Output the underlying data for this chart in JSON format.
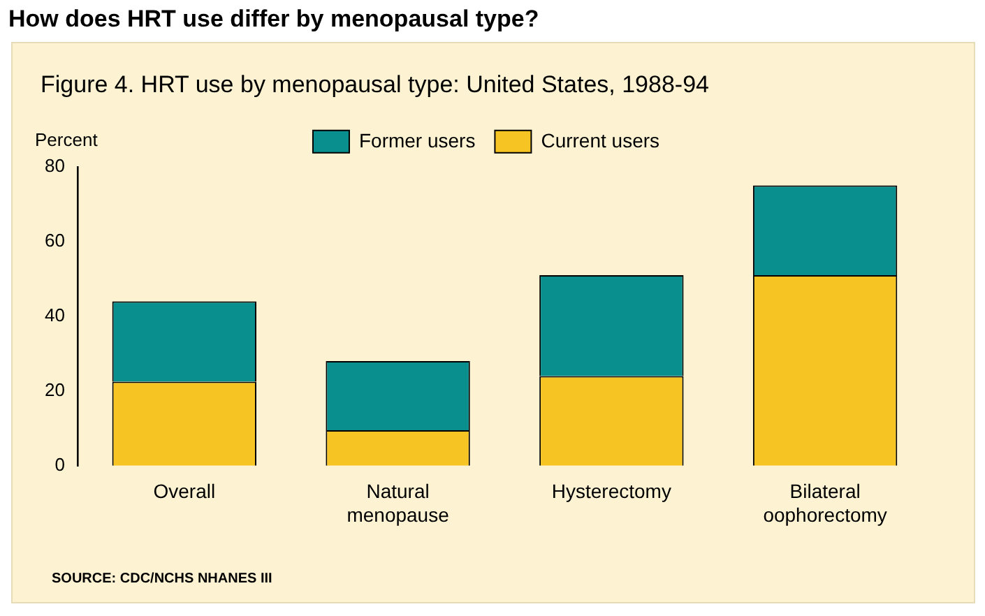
{
  "chart_data": {
    "type": "bar",
    "title": "How does HRT use differ by menopausal type?",
    "subtitle": "Figure 4. HRT use by menopausal type: United States, 1988-94",
    "ylabel": "Percent",
    "categories": [
      "Overall",
      "Natural menopause",
      "Hysterectomy",
      "Bilateral oophorectomy"
    ],
    "series": [
      {
        "name": "Current users",
        "color": "#f7c523",
        "values": [
          22.5,
          9.5,
          24,
          51
        ]
      },
      {
        "name": "Former users",
        "color": "#0a8f8f",
        "values": [
          21.5,
          18.5,
          27,
          24
        ]
      }
    ],
    "stacked": true,
    "ylim": [
      0,
      80
    ],
    "yticks": [
      0,
      20,
      40,
      60,
      80
    ],
    "grid": false,
    "legend": "top",
    "annotations": [
      "SOURCE: CDC/NCHS NHANES III"
    ]
  }
}
